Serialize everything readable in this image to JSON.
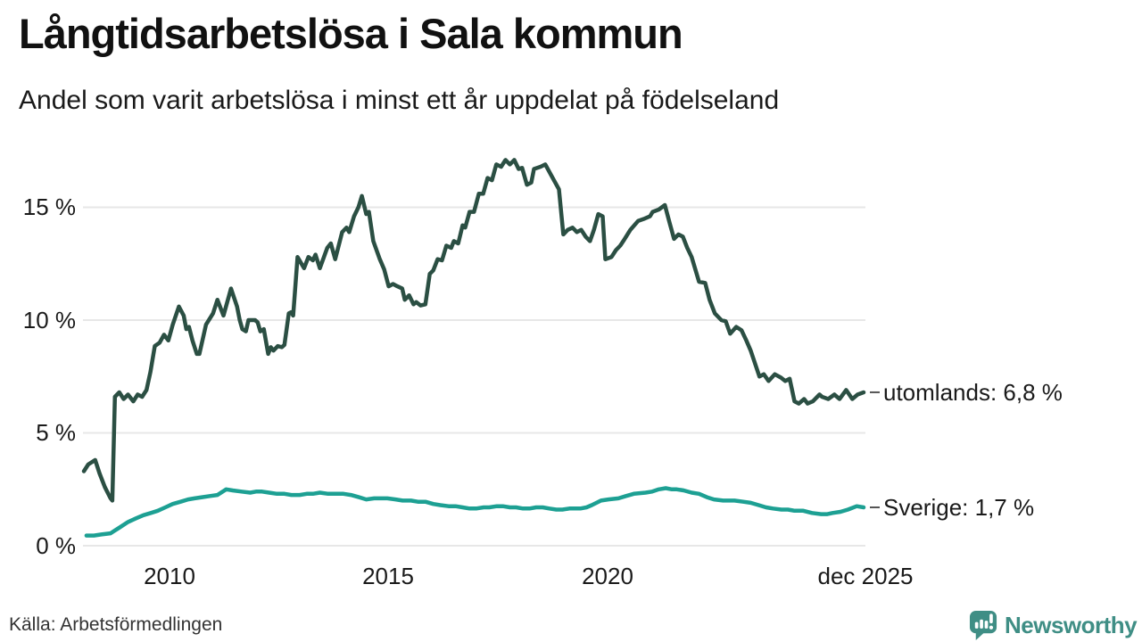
{
  "header": {
    "title": "Långtidsarbetslösa i Sala kommun",
    "subtitle": "Andel som varit arbetslösa i minst ett år uppdelat på födelseland"
  },
  "colors": {
    "utomlands_line": "#2b4f43",
    "sverige_line": "#1da093",
    "grid": "#e7e7e7",
    "text": "#1a1a1a",
    "label_dash": "#555555",
    "brand_teal": "#3f8e85"
  },
  "footer": {
    "source": "Källa: Arbetsförmedlingen",
    "brand": "Newsworthy"
  },
  "chart_data": {
    "type": "line",
    "title": "Långtidsarbetslösa i Sala kommun",
    "subtitle": "Andel som varit arbetslösa i minst ett år uppdelat på födelseland",
    "xlabel": "",
    "ylabel": "",
    "grid": true,
    "x_range": [
      2008.05,
      2025.92
    ],
    "y_range": [
      0,
      17.5
    ],
    "y_ticks": [
      {
        "value": 15,
        "label": "15 %"
      },
      {
        "value": 10,
        "label": "10 %"
      },
      {
        "value": 5,
        "label": "5 %"
      },
      {
        "value": 0,
        "label": "0 %"
      }
    ],
    "x_ticks": [
      {
        "value": 2010,
        "label": "2010"
      },
      {
        "value": 2015,
        "label": "2015"
      },
      {
        "value": 2020,
        "label": "2020"
      },
      {
        "value": 2025.92,
        "label": "dec 2025"
      }
    ],
    "series": [
      {
        "name": "utomlands",
        "end_label": "utomlands: 6,8 %",
        "last_value": "6,8 %",
        "color": "#2b4f43",
        "points": [
          [
            2008.07,
            3.3
          ],
          [
            2008.17,
            3.6
          ],
          [
            2008.33,
            3.8
          ],
          [
            2008.43,
            3.2
          ],
          [
            2008.55,
            2.6
          ],
          [
            2008.68,
            2.1
          ],
          [
            2008.72,
            2.0
          ],
          [
            2008.78,
            6.6
          ],
          [
            2008.88,
            6.8
          ],
          [
            2008.98,
            6.5
          ],
          [
            2009.08,
            6.7
          ],
          [
            2009.2,
            6.4
          ],
          [
            2009.3,
            6.7
          ],
          [
            2009.4,
            6.6
          ],
          [
            2009.5,
            6.9
          ],
          [
            2009.59,
            7.7
          ],
          [
            2009.69,
            8.85
          ],
          [
            2009.8,
            9.0
          ],
          [
            2009.9,
            9.35
          ],
          [
            2010.0,
            9.1
          ],
          [
            2010.1,
            9.8
          ],
          [
            2010.24,
            10.6
          ],
          [
            2010.35,
            10.2
          ],
          [
            2010.41,
            9.6
          ],
          [
            2010.47,
            9.7
          ],
          [
            2010.55,
            9.1
          ],
          [
            2010.65,
            8.5
          ],
          [
            2010.71,
            8.5
          ],
          [
            2010.86,
            9.8
          ],
          [
            2011.02,
            10.3
          ],
          [
            2011.12,
            10.9
          ],
          [
            2011.18,
            10.6
          ],
          [
            2011.26,
            10.2
          ],
          [
            2011.43,
            11.4
          ],
          [
            2011.57,
            10.6
          ],
          [
            2011.63,
            10.0
          ],
          [
            2011.69,
            9.6
          ],
          [
            2011.77,
            9.5
          ],
          [
            2011.83,
            10.0
          ],
          [
            2011.98,
            10.0
          ],
          [
            2012.04,
            9.9
          ],
          [
            2012.1,
            9.5
          ],
          [
            2012.18,
            9.6
          ],
          [
            2012.28,
            8.5
          ],
          [
            2012.34,
            8.8
          ],
          [
            2012.4,
            8.65
          ],
          [
            2012.5,
            8.85
          ],
          [
            2012.59,
            8.8
          ],
          [
            2012.65,
            8.9
          ],
          [
            2012.75,
            10.3
          ],
          [
            2012.81,
            10.35
          ],
          [
            2012.85,
            10.2
          ],
          [
            2012.95,
            12.8
          ],
          [
            2013.1,
            12.3
          ],
          [
            2013.2,
            12.8
          ],
          [
            2013.3,
            12.65
          ],
          [
            2013.36,
            12.9
          ],
          [
            2013.46,
            12.3
          ],
          [
            2013.63,
            13.2
          ],
          [
            2013.71,
            13.4
          ],
          [
            2013.81,
            12.7
          ],
          [
            2013.97,
            13.9
          ],
          [
            2014.07,
            14.1
          ],
          [
            2014.13,
            13.9
          ],
          [
            2014.24,
            14.6
          ],
          [
            2014.34,
            15.0
          ],
          [
            2014.42,
            15.5
          ],
          [
            2014.52,
            14.7
          ],
          [
            2014.58,
            14.8
          ],
          [
            2014.68,
            13.5
          ],
          [
            2014.83,
            12.7
          ],
          [
            2014.93,
            12.25
          ],
          [
            2015.03,
            11.5
          ],
          [
            2015.13,
            11.6
          ],
          [
            2015.23,
            11.5
          ],
          [
            2015.34,
            11.4
          ],
          [
            2015.4,
            10.9
          ],
          [
            2015.5,
            11.1
          ],
          [
            2015.6,
            10.7
          ],
          [
            2015.66,
            10.8
          ],
          [
            2015.76,
            10.65
          ],
          [
            2015.87,
            10.7
          ],
          [
            2015.97,
            12.05
          ],
          [
            2016.05,
            12.2
          ],
          [
            2016.15,
            12.7
          ],
          [
            2016.25,
            12.65
          ],
          [
            2016.35,
            13.3
          ],
          [
            2016.46,
            13.2
          ],
          [
            2016.52,
            13.5
          ],
          [
            2016.62,
            13.4
          ],
          [
            2016.72,
            14.2
          ],
          [
            2016.78,
            14.1
          ],
          [
            2016.88,
            14.8
          ],
          [
            2016.98,
            14.8
          ],
          [
            2017.09,
            15.6
          ],
          [
            2017.19,
            15.6
          ],
          [
            2017.29,
            16.3
          ],
          [
            2017.39,
            16.2
          ],
          [
            2017.49,
            16.9
          ],
          [
            2017.6,
            16.8
          ],
          [
            2017.7,
            17.1
          ],
          [
            2017.8,
            16.9
          ],
          [
            2017.9,
            17.1
          ],
          [
            2018.0,
            16.7
          ],
          [
            2018.08,
            16.75
          ],
          [
            2018.19,
            16.0
          ],
          [
            2018.29,
            16.1
          ],
          [
            2018.35,
            16.7
          ],
          [
            2018.5,
            16.8
          ],
          [
            2018.61,
            16.9
          ],
          [
            2018.75,
            16.4
          ],
          [
            2018.92,
            15.8
          ],
          [
            2019.02,
            13.8
          ],
          [
            2019.12,
            14.0
          ],
          [
            2019.23,
            14.1
          ],
          [
            2019.33,
            13.9
          ],
          [
            2019.43,
            14.0
          ],
          [
            2019.53,
            13.7
          ],
          [
            2019.63,
            13.5
          ],
          [
            2019.72,
            14.0
          ],
          [
            2019.82,
            14.7
          ],
          [
            2019.92,
            14.6
          ],
          [
            2019.98,
            12.7
          ],
          [
            2020.12,
            12.8
          ],
          [
            2020.22,
            13.1
          ],
          [
            2020.32,
            13.3
          ],
          [
            2020.39,
            13.5
          ],
          [
            2020.55,
            14.0
          ],
          [
            2020.73,
            14.4
          ],
          [
            2020.88,
            14.5
          ],
          [
            2021.0,
            14.6
          ],
          [
            2021.06,
            14.8
          ],
          [
            2021.2,
            14.9
          ],
          [
            2021.34,
            15.1
          ],
          [
            2021.45,
            14.3
          ],
          [
            2021.55,
            13.6
          ],
          [
            2021.65,
            13.8
          ],
          [
            2021.75,
            13.7
          ],
          [
            2021.85,
            13.2
          ],
          [
            2021.95,
            12.8
          ],
          [
            2022.12,
            11.7
          ],
          [
            2022.26,
            11.65
          ],
          [
            2022.36,
            10.9
          ],
          [
            2022.48,
            10.3
          ],
          [
            2022.63,
            10.0
          ],
          [
            2022.73,
            9.95
          ],
          [
            2022.83,
            9.4
          ],
          [
            2022.97,
            9.7
          ],
          [
            2023.09,
            9.55
          ],
          [
            2023.2,
            9.1
          ],
          [
            2023.3,
            8.65
          ],
          [
            2023.5,
            7.5
          ],
          [
            2023.6,
            7.6
          ],
          [
            2023.71,
            7.3
          ],
          [
            2023.85,
            7.6
          ],
          [
            2023.99,
            7.45
          ],
          [
            2024.09,
            7.3
          ],
          [
            2024.19,
            7.4
          ],
          [
            2024.3,
            6.4
          ],
          [
            2024.4,
            6.3
          ],
          [
            2024.52,
            6.5
          ],
          [
            2024.6,
            6.3
          ],
          [
            2024.72,
            6.4
          ],
          [
            2024.87,
            6.7
          ],
          [
            2024.93,
            6.6
          ],
          [
            2025.07,
            6.5
          ],
          [
            2025.21,
            6.7
          ],
          [
            2025.33,
            6.5
          ],
          [
            2025.48,
            6.9
          ],
          [
            2025.62,
            6.5
          ],
          [
            2025.74,
            6.7
          ],
          [
            2025.88,
            6.8
          ]
        ]
      },
      {
        "name": "Sverige",
        "end_label": "Sverige: 1,7 %",
        "last_value": "1,7 %",
        "color": "#1da093",
        "points": [
          [
            2008.13,
            0.45
          ],
          [
            2008.3,
            0.45
          ],
          [
            2008.47,
            0.5
          ],
          [
            2008.68,
            0.55
          ],
          [
            2008.88,
            0.8
          ],
          [
            2009.08,
            1.05
          ],
          [
            2009.25,
            1.2
          ],
          [
            2009.43,
            1.35
          ],
          [
            2009.6,
            1.45
          ],
          [
            2009.76,
            1.55
          ],
          [
            2009.93,
            1.7
          ],
          [
            2010.1,
            1.85
          ],
          [
            2010.28,
            1.95
          ],
          [
            2010.45,
            2.05
          ],
          [
            2010.6,
            2.1
          ],
          [
            2010.77,
            2.15
          ],
          [
            2010.95,
            2.2
          ],
          [
            2011.12,
            2.25
          ],
          [
            2011.32,
            2.5
          ],
          [
            2011.47,
            2.45
          ],
          [
            2011.67,
            2.4
          ],
          [
            2011.87,
            2.35
          ],
          [
            2012.0,
            2.4
          ],
          [
            2012.14,
            2.4
          ],
          [
            2012.3,
            2.35
          ],
          [
            2012.48,
            2.3
          ],
          [
            2012.65,
            2.3
          ],
          [
            2012.81,
            2.25
          ],
          [
            2013.0,
            2.25
          ],
          [
            2013.16,
            2.3
          ],
          [
            2013.3,
            2.3
          ],
          [
            2013.46,
            2.35
          ],
          [
            2013.65,
            2.3
          ],
          [
            2013.83,
            2.3
          ],
          [
            2014.0,
            2.3
          ],
          [
            2014.17,
            2.25
          ],
          [
            2014.35,
            2.15
          ],
          [
            2014.52,
            2.05
          ],
          [
            2014.7,
            2.1
          ],
          [
            2014.85,
            2.1
          ],
          [
            2015.0,
            2.1
          ],
          [
            2015.19,
            2.05
          ],
          [
            2015.35,
            2.0
          ],
          [
            2015.54,
            2.0
          ],
          [
            2015.7,
            1.95
          ],
          [
            2015.87,
            1.95
          ],
          [
            2016.05,
            1.85
          ],
          [
            2016.21,
            1.8
          ],
          [
            2016.4,
            1.75
          ],
          [
            2016.56,
            1.75
          ],
          [
            2016.72,
            1.7
          ],
          [
            2016.88,
            1.65
          ],
          [
            2017.03,
            1.65
          ],
          [
            2017.2,
            1.7
          ],
          [
            2017.33,
            1.7
          ],
          [
            2017.5,
            1.75
          ],
          [
            2017.64,
            1.75
          ],
          [
            2017.8,
            1.7
          ],
          [
            2017.94,
            1.7
          ],
          [
            2018.1,
            1.65
          ],
          [
            2018.25,
            1.65
          ],
          [
            2018.4,
            1.7
          ],
          [
            2018.55,
            1.7
          ],
          [
            2018.7,
            1.65
          ],
          [
            2018.86,
            1.6
          ],
          [
            2019.0,
            1.6
          ],
          [
            2019.16,
            1.65
          ],
          [
            2019.41,
            1.65
          ],
          [
            2019.55,
            1.7
          ],
          [
            2019.67,
            1.8
          ],
          [
            2019.88,
            2.0
          ],
          [
            2020.05,
            2.05
          ],
          [
            2020.28,
            2.1
          ],
          [
            2020.45,
            2.2
          ],
          [
            2020.63,
            2.3
          ],
          [
            2020.9,
            2.35
          ],
          [
            2021.05,
            2.4
          ],
          [
            2021.2,
            2.5
          ],
          [
            2021.36,
            2.55
          ],
          [
            2021.5,
            2.5
          ],
          [
            2021.61,
            2.5
          ],
          [
            2021.77,
            2.45
          ],
          [
            2021.95,
            2.35
          ],
          [
            2022.12,
            2.3
          ],
          [
            2022.3,
            2.15
          ],
          [
            2022.46,
            2.05
          ],
          [
            2022.67,
            2.0
          ],
          [
            2022.93,
            2.0
          ],
          [
            2023.13,
            1.95
          ],
          [
            2023.3,
            1.9
          ],
          [
            2023.48,
            1.8
          ],
          [
            2023.65,
            1.7
          ],
          [
            2023.81,
            1.65
          ],
          [
            2024.0,
            1.6
          ],
          [
            2024.15,
            1.6
          ],
          [
            2024.3,
            1.55
          ],
          [
            2024.5,
            1.55
          ],
          [
            2024.7,
            1.45
          ],
          [
            2024.91,
            1.4
          ],
          [
            2025.05,
            1.4
          ],
          [
            2025.17,
            1.45
          ],
          [
            2025.35,
            1.5
          ],
          [
            2025.52,
            1.6
          ],
          [
            2025.72,
            1.75
          ],
          [
            2025.88,
            1.7
          ]
        ]
      }
    ],
    "legend_position": "right-end-labels"
  }
}
